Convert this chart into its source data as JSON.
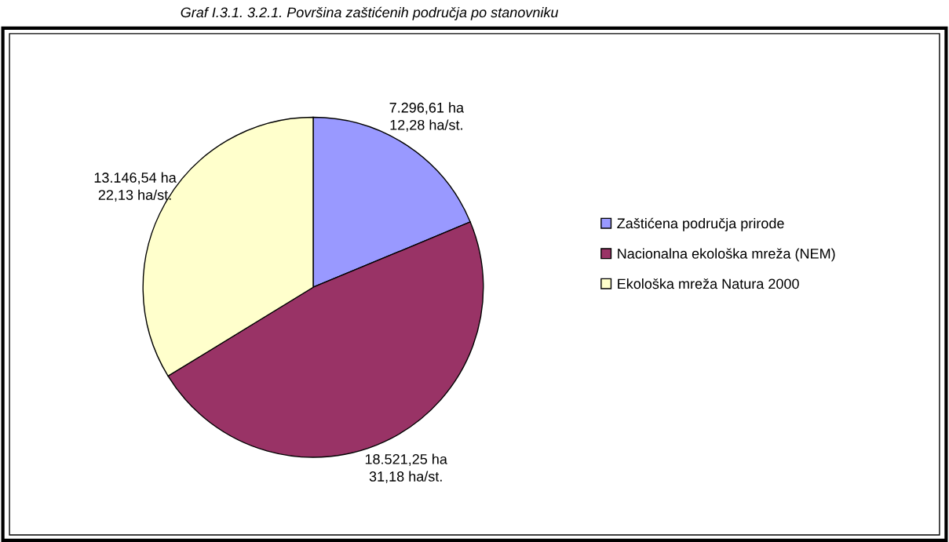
{
  "chart_data": {
    "type": "pie",
    "title": "Graf I.3.1. 3.2.1. Površina zaštićenih područja po stanovniku",
    "categories": [
      "Zaštićena područja prirode",
      "Nacionalna ekološka mreža (NEM)",
      "Ekološka mreža Natura 2000"
    ],
    "values": [
      7296.61,
      18521.25,
      13146.54
    ],
    "colors": [
      "#9999ff",
      "#993366",
      "#ffffcc"
    ],
    "value_labels": [
      "7.296,61 ha\n12,28 ha/st.",
      "18.521,25 ha\n31,18 ha/st.",
      "13.146,54 ha\n22,13 ha/st."
    ],
    "legend": "right"
  }
}
